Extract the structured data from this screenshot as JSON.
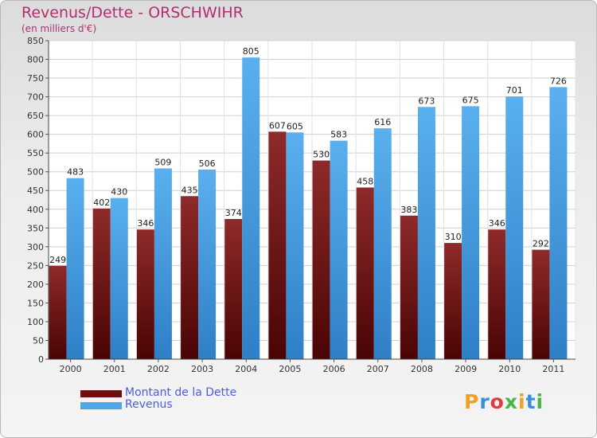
{
  "header": {
    "title": "Revenus/Dette - ORSCHWIHR",
    "subtitle": "(en milliers d'€)"
  },
  "brand": {
    "logo": "Proxiti"
  },
  "colors": {
    "dette": "#7b1a1a",
    "revenus": "#4ea6e6",
    "title": "#b0306e",
    "legend_text": "#4b5ee0"
  },
  "legend": {
    "items": [
      {
        "label": "Montant de la Dette",
        "color": "#6b0f0f"
      },
      {
        "label": "Revenus",
        "color": "#4ea6e6"
      }
    ]
  },
  "chart_data": {
    "type": "bar",
    "title": "Revenus/Dette - ORSCHWIHR",
    "subtitle": "(en milliers d'€)",
    "categories": [
      "2000",
      "2001",
      "2002",
      "2003",
      "2004",
      "2005",
      "2006",
      "2007",
      "2008",
      "2009",
      "2010",
      "2011"
    ],
    "series": [
      {
        "name": "Montant de la Dette",
        "values": [
          249,
          402,
          346,
          435,
          374,
          607,
          530,
          458,
          383,
          310,
          346,
          292
        ]
      },
      {
        "name": "Revenus",
        "values": [
          483,
          430,
          509,
          506,
          805,
          605,
          583,
          616,
          673,
          675,
          701,
          726
        ]
      }
    ],
    "ylim": [
      0,
      850
    ],
    "yticks": [
      0,
      50,
      100,
      150,
      200,
      250,
      300,
      350,
      400,
      450,
      500,
      550,
      600,
      650,
      700,
      750,
      800,
      850
    ],
    "grid": true,
    "legend_position": "bottom-left"
  }
}
